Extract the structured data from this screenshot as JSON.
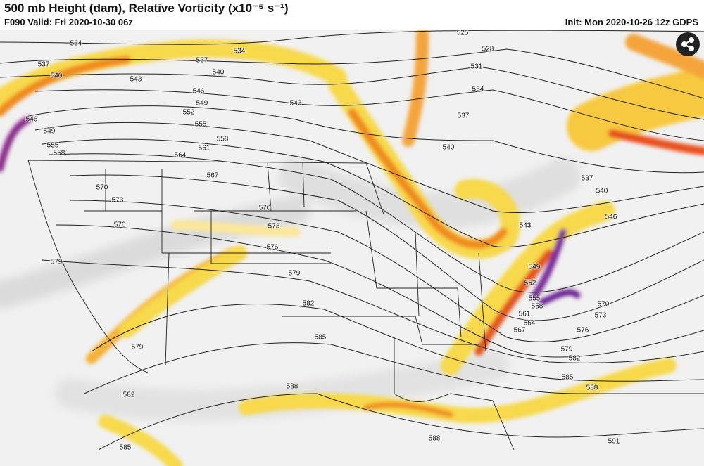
{
  "header": {
    "title": "500 mb Height (dam), Relative Vorticity (x10⁻⁵ s⁻¹)",
    "valid": "F090 Valid: Fri 2020-10-30 06z",
    "init": "Init: Mon 2020-10-26 12z GDPS"
  },
  "contour_labels": [
    534,
    534,
    537,
    537,
    540,
    540,
    543,
    546,
    549,
    546,
    552,
    549,
    555,
    555,
    558,
    558,
    561,
    564,
    567,
    570,
    573,
    570,
    573,
    576,
    576,
    579,
    579,
    582,
    579,
    585,
    582,
    588,
    585,
    588,
    525,
    528,
    531,
    534,
    537,
    543,
    540,
    537,
    540,
    546,
    543,
    549,
    552,
    555,
    558,
    561,
    564,
    567,
    570,
    573,
    576,
    579,
    582,
    585,
    588,
    591
  ]
}
